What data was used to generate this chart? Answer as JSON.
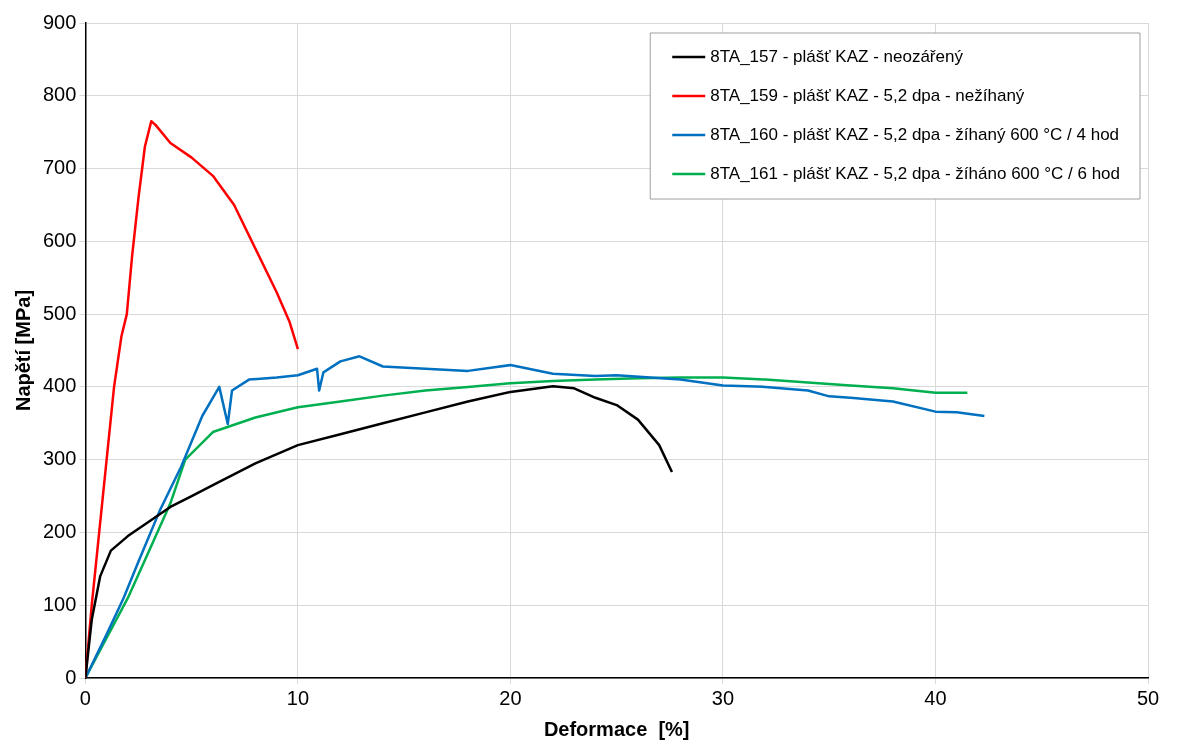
{
  "chart_data": {
    "type": "line",
    "xlabel": "Deformace  [%]",
    "ylabel": "Napětí [MPa]",
    "xlim": [
      0,
      50
    ],
    "xticks": [
      0,
      10,
      20,
      30,
      40,
      50
    ],
    "ylim": [
      0,
      900
    ],
    "yticks": [
      0,
      100,
      200,
      300,
      400,
      500,
      600,
      700,
      800,
      900
    ],
    "grid": true,
    "legend": "top right",
    "marker": "none",
    "line_style": "solid",
    "series": [
      {
        "name": "8TA_157 - plášť KAZ - neozářený",
        "color": "#000000",
        "x": [
          0,
          0.3,
          0.7,
          1.2,
          2,
          3,
          4,
          5,
          6,
          8,
          10,
          12,
          14,
          16,
          18,
          20,
          22,
          23,
          24,
          25,
          26,
          27,
          27.6
        ],
        "values": [
          0,
          80,
          140,
          175,
          195,
          215,
          235,
          250,
          265,
          295,
          320,
          335,
          350,
          365,
          380,
          393,
          401,
          398,
          385,
          375,
          355,
          320,
          283
        ]
      },
      {
        "name": "8TA_159 - plášť KAZ - 5,2 dpa - nežíhaný",
        "color": "#ff0000",
        "x": [
          0,
          0.3,
          0.65,
          1,
          1.35,
          1.7,
          1.95,
          2.2,
          2.5,
          2.8,
          3.1,
          3.3,
          4,
          5,
          6,
          7,
          8,
          9,
          9.6,
          10
        ],
        "values": [
          0,
          100,
          200,
          300,
          400,
          470,
          500,
          580,
          660,
          730,
          765,
          760,
          735,
          715,
          690,
          650,
          590,
          530,
          490,
          452
        ]
      },
      {
        "name": "8TA_160 - plášť KAZ - 5,2 dpa - žíhaný 600 °C / 4 hod",
        "color": "#0070c0",
        "x": [
          0,
          1,
          1.8,
          2.5,
          3.5,
          4.5,
          5.5,
          6.3,
          6.7,
          6.9,
          7.7,
          9,
          10,
          10.9,
          11,
          11.2,
          12,
          12.9,
          14,
          16,
          18,
          20,
          22,
          24,
          25,
          28,
          30,
          32,
          34,
          35,
          36,
          38,
          40,
          41,
          42.3
        ],
        "values": [
          0,
          60,
          110,
          160,
          230,
          290,
          360,
          400,
          349,
          395,
          410,
          413,
          416,
          425,
          395,
          420,
          435,
          442,
          428,
          425,
          422,
          430,
          418,
          415,
          416,
          410,
          402,
          400,
          395,
          387,
          385,
          380,
          366,
          365,
          360
        ]
      },
      {
        "name": "8TA_161 - plášť KAZ - 5,2 dpa - žíháno 600 °C / 6 hod",
        "color": "#00b050",
        "x": [
          0,
          1,
          2,
          3,
          4,
          4.7,
          6,
          7,
          8,
          10,
          12,
          14,
          16,
          18,
          20,
          22,
          24,
          26,
          28,
          30,
          32,
          34,
          36,
          38,
          40,
          41.5
        ],
        "values": [
          0,
          55,
          110,
          175,
          240,
          300,
          338,
          348,
          358,
          372,
          380,
          388,
          395,
          400,
          405,
          408,
          410,
          412,
          413,
          413,
          410,
          406,
          402,
          398,
          392,
          392
        ]
      }
    ]
  }
}
